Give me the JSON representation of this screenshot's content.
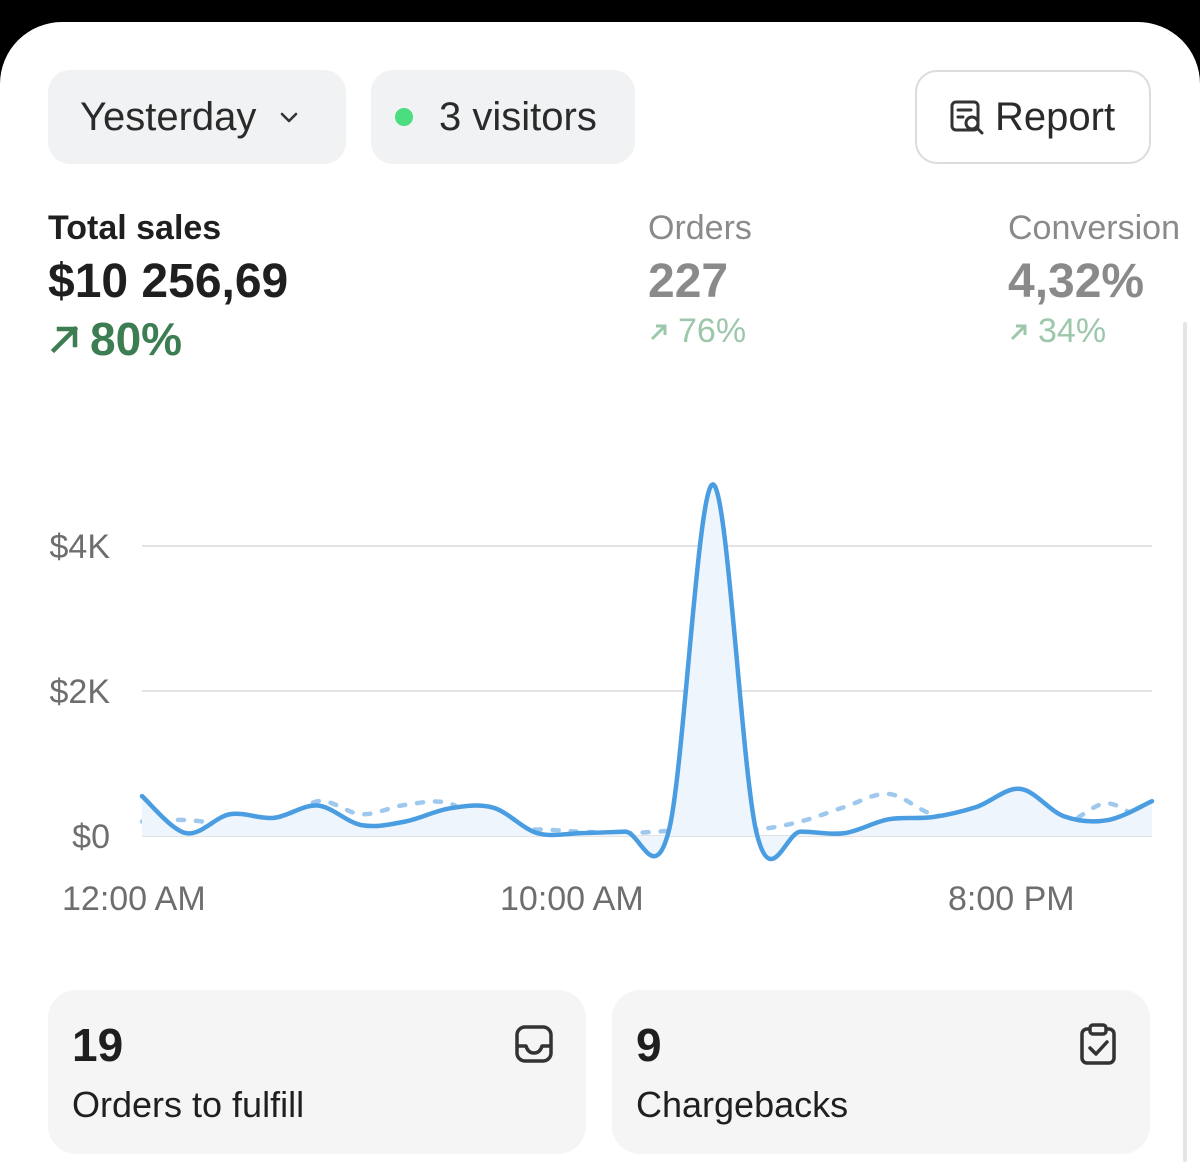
{
  "toolbar": {
    "date_range": "Yesterday",
    "visitors": "3 visitors",
    "report": "Report",
    "visitor_status_color": "#4ade80"
  },
  "metrics": {
    "total_sales": {
      "label": "Total sales",
      "value": "$10 256,69",
      "delta": "80%"
    },
    "orders": {
      "label": "Orders",
      "value": "227",
      "delta": "76%"
    },
    "conversion": {
      "label": "Conversion",
      "value": "4,32%",
      "delta": "34%"
    }
  },
  "chart_data": {
    "type": "line",
    "x_labels": [
      "12:00 AM",
      "10:00 AM",
      "8:00 PM"
    ],
    "y_ticks": [
      "$0",
      "$2K",
      "$4K"
    ],
    "ylim": [
      0,
      5000
    ],
    "grid": true,
    "series": [
      {
        "style": "solid",
        "color": "#4a9de0",
        "values": [
          550,
          40,
          300,
          250,
          420,
          150,
          200,
          380,
          390,
          40,
          40,
          60,
          80,
          4850,
          30,
          60,
          40,
          230,
          260,
          400,
          650,
          270,
          220,
          480
        ]
      },
      {
        "style": "dashed",
        "color": "#9ec8ee",
        "values": [
          200,
          220,
          150,
          100,
          480,
          300,
          430,
          450,
          80,
          90,
          60,
          40,
          70,
          100,
          90,
          200,
          400,
          580,
          300,
          230,
          340,
          180,
          450,
          100
        ]
      }
    ]
  },
  "tiles": [
    {
      "count": "19",
      "label": "Orders to fulfill",
      "icon": "inbox-icon"
    },
    {
      "count": "9",
      "label": "Chargebacks",
      "icon": "clipboard-check-icon"
    }
  ]
}
